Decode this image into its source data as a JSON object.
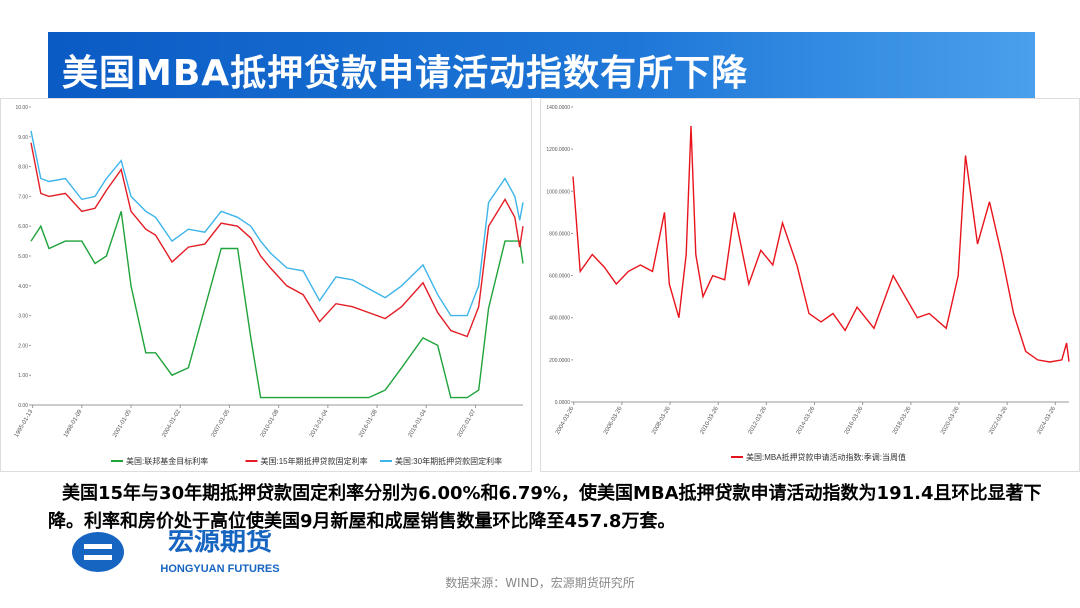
{
  "header": {
    "title": "美国MBA抵押贷款申请活动指数有所下降"
  },
  "chart_data": [
    {
      "type": "line",
      "x": [
        1994.9,
        1995.5,
        1996,
        1997,
        1998,
        1998.8,
        1999.5,
        2000.4,
        2001,
        2001.9,
        2002.5,
        2003.5,
        2004.5,
        2005.5,
        2006.5,
        2007.5,
        2008.3,
        2008.9,
        2009.5,
        2010.5,
        2011.5,
        2012.5,
        2013.5,
        2014.5,
        2015.5,
        2016.5,
        2017.5,
        2018.8,
        2019.7,
        2020.5,
        2021.5,
        2022.2,
        2022.8,
        2023.8,
        2024.4,
        2024.7,
        2024.9
      ],
      "series": [
        {
          "name": "美国:联邦基金目标利率",
          "color": "#1fa33a",
          "values": [
            5.5,
            6,
            5.25,
            5.5,
            5.5,
            4.75,
            5,
            6.5,
            4,
            1.75,
            1.75,
            1,
            1.25,
            3.25,
            5.25,
            5.25,
            2.25,
            0.25,
            0.25,
            0.25,
            0.25,
            0.25,
            0.25,
            0.25,
            0.25,
            0.5,
            1.25,
            2.25,
            2,
            0.25,
            0.25,
            0.5,
            3.25,
            5.5,
            5.5,
            5.5,
            4.75
          ]
        },
        {
          "name": "美国:15年期抵押贷款固定利率",
          "color": "#e31d25",
          "values": [
            8.8,
            7.1,
            7.0,
            7.1,
            6.5,
            6.6,
            7.2,
            7.9,
            6.5,
            5.9,
            5.7,
            4.8,
            5.3,
            5.4,
            6.1,
            6.0,
            5.6,
            5.0,
            4.6,
            4.0,
            3.7,
            2.8,
            3.4,
            3.3,
            3.1,
            2.9,
            3.3,
            4.1,
            3.1,
            2.5,
            2.3,
            3.3,
            6.0,
            6.9,
            6.3,
            5.3,
            6.0
          ]
        },
        {
          "name": "美国:30年期抵押贷款固定利率",
          "color": "#3db4ea",
          "values": [
            9.2,
            7.6,
            7.5,
            7.6,
            6.9,
            7.0,
            7.6,
            8.2,
            7.0,
            6.5,
            6.3,
            5.5,
            5.9,
            5.8,
            6.5,
            6.3,
            6.0,
            5.5,
            5.1,
            4.6,
            4.5,
            3.5,
            4.3,
            4.2,
            3.9,
            3.6,
            4.0,
            4.7,
            3.7,
            3.0,
            3.0,
            4.0,
            6.8,
            7.6,
            7.0,
            6.2,
            6.8
          ]
        }
      ],
      "xlim": [
        1994.9,
        2024.9
      ],
      "ylim": [
        0,
        10
      ],
      "yticks": [
        {
          "value": 0,
          "label": "0.00"
        },
        {
          "value": 1,
          "label": "1.00"
        },
        {
          "value": 2,
          "label": "2.00"
        },
        {
          "value": 3,
          "label": "3.00"
        },
        {
          "value": 4,
          "label": "4.00"
        },
        {
          "value": 5,
          "label": "5.00"
        },
        {
          "value": 6,
          "label": "6.00"
        },
        {
          "value": 7,
          "label": "7.00"
        },
        {
          "value": 8,
          "label": "8.00"
        },
        {
          "value": 9,
          "label": "9.00"
        },
        {
          "value": 10,
          "label": "10.00"
        }
      ],
      "xticks": [
        {
          "value": 1995,
          "label": "1995-01-13"
        },
        {
          "value": 1998,
          "label": "1998-01-09"
        },
        {
          "value": 2001,
          "label": "2001-01-05"
        },
        {
          "value": 2004,
          "label": "2004-01-02"
        },
        {
          "value": 2007,
          "label": "2007-01-05"
        },
        {
          "value": 2010,
          "label": "2010-01-08"
        },
        {
          "value": 2013,
          "label": "2013-01-04"
        },
        {
          "value": 2016,
          "label": "2016-01-08"
        },
        {
          "value": 2019,
          "label": "2019-01-04"
        },
        {
          "value": 2022,
          "label": "2022-01-07"
        }
      ]
    },
    {
      "type": "line",
      "x": [
        2004.2,
        2004.5,
        2005,
        2005.5,
        2006,
        2006.5,
        2007,
        2007.5,
        2008,
        2008.2,
        2008.6,
        2008.9,
        2009.1,
        2009.3,
        2009.6,
        2010,
        2010.5,
        2010.9,
        2011.5,
        2012,
        2012.5,
        2012.9,
        2013.5,
        2014,
        2014.5,
        2015,
        2015.5,
        2016,
        2016.7,
        2017.5,
        2018.5,
        2019,
        2019.7,
        2020.2,
        2020.5,
        2021,
        2021.5,
        2022,
        2022.5,
        2023,
        2023.5,
        2024,
        2024.5,
        2024.7,
        2024.8
      ],
      "series": [
        {
          "name": "美国:MBA抵押贷款申请活动指数:季调:当周值",
          "color": "#e8141c",
          "values": [
            1070,
            620,
            700,
            640,
            560,
            620,
            650,
            620,
            900,
            560,
            400,
            700,
            1310,
            700,
            500,
            600,
            580,
            900,
            560,
            720,
            650,
            850,
            650,
            420,
            380,
            420,
            340,
            450,
            350,
            600,
            400,
            420,
            350,
            600,
            1170,
            750,
            950,
            700,
            420,
            240,
            200,
            190,
            200,
            280,
            191.4
          ]
        }
      ],
      "xlim": [
        2004.2,
        2024.8
      ],
      "ylim": [
        0,
        1400
      ],
      "yticks": [
        {
          "value": 0,
          "label": "0.0000"
        },
        {
          "value": 200,
          "label": "200.0000"
        },
        {
          "value": 400,
          "label": "400.0000"
        },
        {
          "value": 600,
          "label": "600.0000"
        },
        {
          "value": 800,
          "label": "800.0000"
        },
        {
          "value": 1000,
          "label": "1000.0000"
        },
        {
          "value": 1200,
          "label": "1200.0000"
        },
        {
          "value": 1400,
          "label": "1400.0000"
        }
      ],
      "xticks": [
        {
          "value": 2004.23,
          "label": "2004-03-26"
        },
        {
          "value": 2006.23,
          "label": "2006-03-26"
        },
        {
          "value": 2008.23,
          "label": "2008-03-26"
        },
        {
          "value": 2010.23,
          "label": "2010-03-26"
        },
        {
          "value": 2012.23,
          "label": "2012-03-26"
        },
        {
          "value": 2014.23,
          "label": "2014-03-26"
        },
        {
          "value": 2016.23,
          "label": "2016-03-26"
        },
        {
          "value": 2018.23,
          "label": "2018-03-26"
        },
        {
          "value": 2020.23,
          "label": "2020-03-26"
        },
        {
          "value": 2022.23,
          "label": "2022-03-26"
        },
        {
          "value": 2024.23,
          "label": "2024-03-26"
        }
      ]
    }
  ],
  "body": {
    "text": "美国15年与30年期抵押贷款固定利率分别为6.00%和6.79%，使美国MBA抵押贷款申请活动指数为191.4且环比显著下降。利率和房价处于高位使美国9月新屋和成屋销售数量环比降至457.8万套。"
  },
  "logo": {
    "name": "宏源期货",
    "name_en": "HONGYUAN FUTURES"
  },
  "footer": {
    "source": "数据来源：WIND，宏源期货研究所"
  }
}
